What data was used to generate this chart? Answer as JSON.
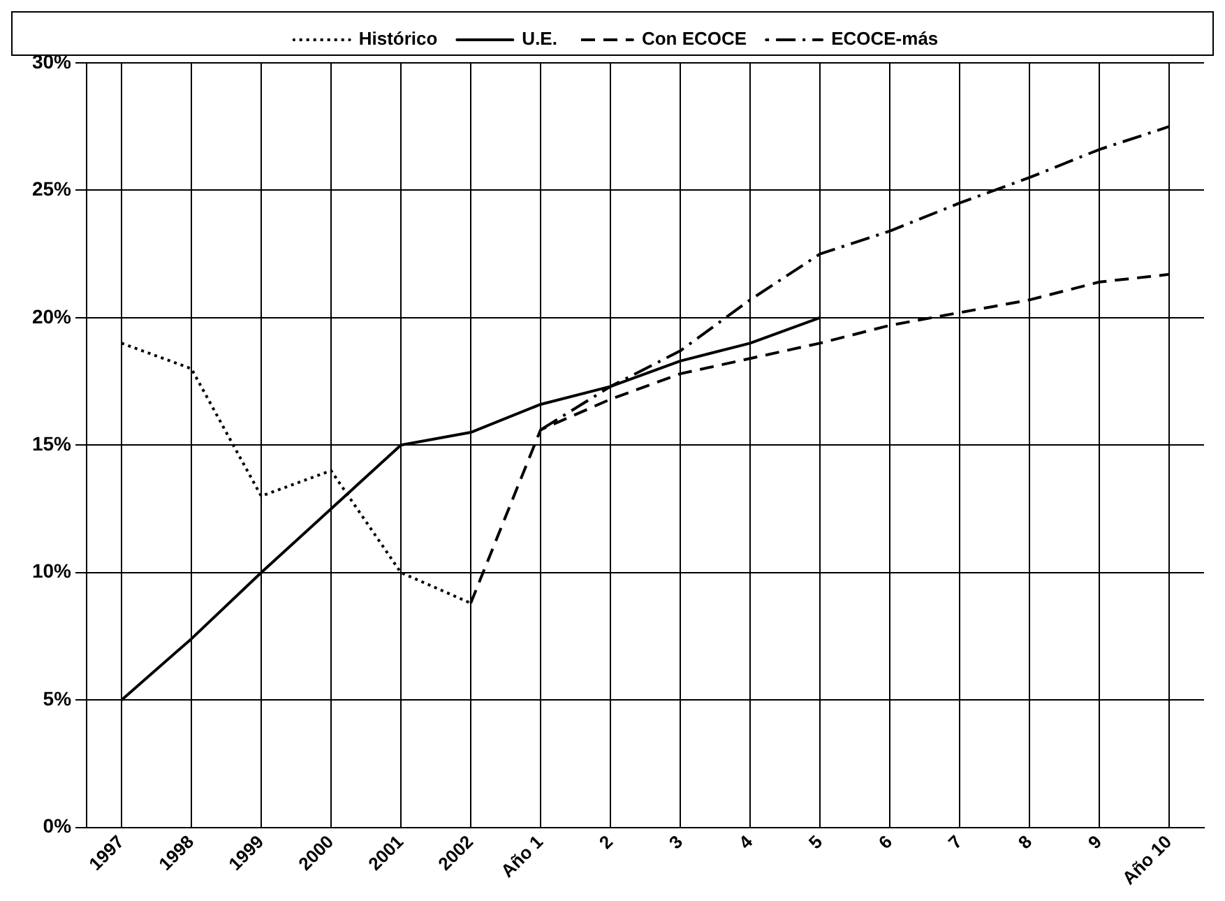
{
  "chart_data": {
    "type": "line",
    "categories": [
      "1997",
      "1998",
      "1999",
      "2000",
      "2001",
      "2002",
      "Año 1",
      "2",
      "3",
      "4",
      "5",
      "6",
      "7",
      "8",
      "9",
      "Año 10"
    ],
    "series": [
      {
        "name": "Histórico",
        "color": "#000000",
        "line_style": "dotted",
        "values": [
          19,
          18,
          13,
          14,
          10,
          8.8,
          null,
          null,
          null,
          null,
          null,
          null,
          null,
          null,
          null,
          null
        ]
      },
      {
        "name": "U.E.",
        "color": "#000000",
        "line_style": "solid",
        "values": [
          5,
          7.4,
          10,
          12.5,
          15,
          15.5,
          16.6,
          17.3,
          18.3,
          19,
          20,
          null,
          null,
          null,
          null,
          null
        ]
      },
      {
        "name": "Con ECOCE",
        "color": "#000000",
        "line_style": "dashed",
        "values": [
          null,
          null,
          null,
          null,
          null,
          8.8,
          15.6,
          16.8,
          17.8,
          18.4,
          19,
          19.7,
          20.2,
          20.7,
          21.4,
          21.7
        ]
      },
      {
        "name": "ECOCE-más",
        "color": "#000000",
        "line_style": "dashdot",
        "values": [
          null,
          null,
          null,
          null,
          null,
          null,
          15.6,
          17.3,
          18.7,
          20.7,
          22.5,
          23.4,
          24.5,
          25.5,
          26.6,
          27.5
        ]
      }
    ],
    "ylim": [
      0,
      30
    ],
    "yticks": [
      {
        "value": 0,
        "label": "0%"
      },
      {
        "value": 5,
        "label": "5%"
      },
      {
        "value": 10,
        "label": "10%"
      },
      {
        "value": 15,
        "label": "15%"
      },
      {
        "value": 20,
        "label": "20%"
      },
      {
        "value": 25,
        "label": "25%"
      },
      {
        "value": 30,
        "label": "30%"
      }
    ],
    "grid": true,
    "legend": "top",
    "marker": "none"
  }
}
